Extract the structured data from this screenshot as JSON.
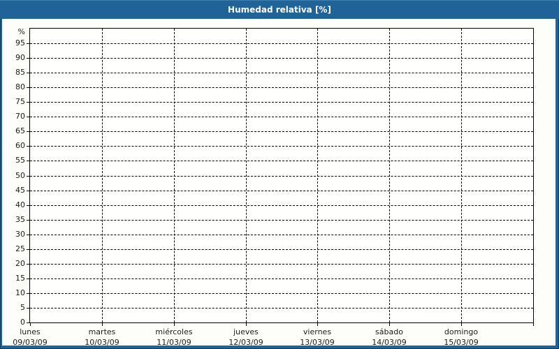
{
  "header": {
    "title": "Humedad relativa [%]",
    "bg_color": "#1f6398",
    "text_color": "#ffffff"
  },
  "panel": {
    "bg_color": "#fdfefa",
    "frame_color": "#1f6398"
  },
  "chart_data": {
    "type": "line",
    "title": "Humedad relativa [%]",
    "y_unit_label": "%",
    "ylim": [
      0,
      100
    ],
    "y_tick_step": 5,
    "y_tick_labels": [
      0,
      5,
      10,
      15,
      20,
      25,
      30,
      35,
      40,
      45,
      50,
      55,
      60,
      65,
      70,
      75,
      80,
      85,
      90,
      95
    ],
    "x_categories": [
      {
        "day": "lunes",
        "date": "09/03/09"
      },
      {
        "day": "martes",
        "date": "10/03/09"
      },
      {
        "day": "miércoles",
        "date": "11/03/09"
      },
      {
        "day": "jueves",
        "date": "12/03/09"
      },
      {
        "day": "viernes",
        "date": "13/03/09"
      },
      {
        "day": "sábado",
        "date": "14/03/09"
      },
      {
        "day": "domingo",
        "date": "15/03/09"
      }
    ],
    "series": [],
    "grid": "dashed",
    "grid_color": "#000000",
    "axis_color": "#000000",
    "axis_text_color": "#1a1a1a",
    "legend": null
  }
}
